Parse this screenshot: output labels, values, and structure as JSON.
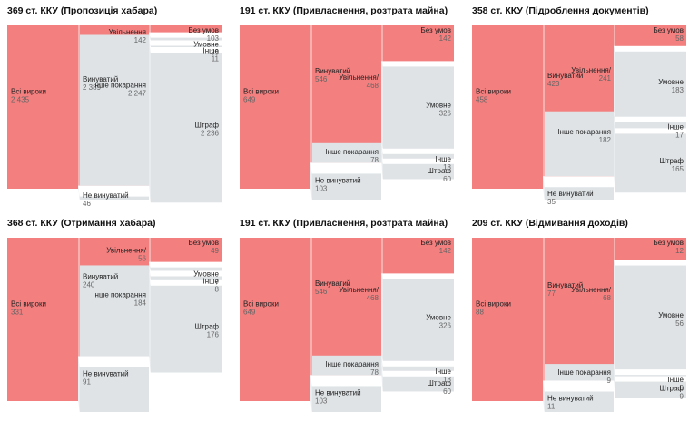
{
  "colors": {
    "red": "#f37f7f",
    "red_link": "#f7b0b0",
    "grey": "#dfe3e6",
    "grey_link": "#e9ecee",
    "label": "#222222",
    "value": "#666666"
  },
  "chart_data": [
    {
      "type": "sankey",
      "title": "369 ст. ККУ (Пропозиція хабара)",
      "nodes": [
        {
          "id": "all",
          "label": "Всі вироки",
          "value": "2 435"
        },
        {
          "id": "guilty",
          "label": "Винуватий",
          "value": "2 389"
        },
        {
          "id": "notguilty",
          "label": "Не винуватий",
          "value": "46"
        },
        {
          "id": "released",
          "label": "Увільнення",
          "value": "142"
        },
        {
          "id": "other",
          "label": "Інше покарання",
          "value": "2 247"
        },
        {
          "id": "real",
          "label": "Без умов",
          "value": "103"
        },
        {
          "id": "cond",
          "label": "Умовне",
          "value": "39"
        },
        {
          "id": "oth",
          "label": "Інше",
          "value": "11"
        },
        {
          "id": "fine",
          "label": "Штраф",
          "value": "2 236"
        }
      ],
      "links": [
        [
          "all",
          "guilty"
        ],
        [
          "all",
          "notguilty"
        ],
        [
          "guilty",
          "released"
        ],
        [
          "guilty",
          "other"
        ],
        [
          "released",
          "real"
        ],
        [
          "released",
          "cond"
        ],
        [
          "other",
          "oth"
        ],
        [
          "other",
          "fine"
        ]
      ]
    },
    {
      "type": "sankey",
      "title": "191 ст. ККУ (Привласнення, розтрата майна)",
      "nodes": [
        {
          "id": "all",
          "label": "Всі вироки",
          "value": "649"
        },
        {
          "id": "guilty",
          "label": "Винуватий",
          "value": "546"
        },
        {
          "id": "notguilty",
          "label": "Не винуватий",
          "value": "103"
        },
        {
          "id": "released",
          "label": "Увільнення/",
          "value": "468"
        },
        {
          "id": "other",
          "label": "Інше покарання",
          "value": "78"
        },
        {
          "id": "real",
          "label": "Без умов",
          "value": "142"
        },
        {
          "id": "cond",
          "label": "Умовне",
          "value": "326"
        },
        {
          "id": "oth",
          "label": "Інше",
          "value": "18"
        },
        {
          "id": "fine",
          "label": "Штраф",
          "value": "60"
        }
      ],
      "links": [
        [
          "all",
          "guilty"
        ],
        [
          "all",
          "notguilty"
        ],
        [
          "guilty",
          "released"
        ],
        [
          "guilty",
          "other"
        ],
        [
          "released",
          "real"
        ],
        [
          "released",
          "cond"
        ],
        [
          "other",
          "oth"
        ],
        [
          "other",
          "fine"
        ]
      ]
    },
    {
      "type": "sankey",
      "title": "358 ст. ККУ (Підроблення документів)",
      "nodes": [
        {
          "id": "all",
          "label": "Всі вироки",
          "value": "458"
        },
        {
          "id": "guilty",
          "label": "Винуватий",
          "value": "423"
        },
        {
          "id": "notguilty",
          "label": "Не винуватий",
          "value": "35"
        },
        {
          "id": "released",
          "label": "Увільнення/",
          "value": "241"
        },
        {
          "id": "other",
          "label": "Інше покарання",
          "value": "182"
        },
        {
          "id": "real",
          "label": "Без умов",
          "value": "58"
        },
        {
          "id": "cond",
          "label": "Умовне",
          "value": "183"
        },
        {
          "id": "oth",
          "label": "Інше",
          "value": "17"
        },
        {
          "id": "fine",
          "label": "Штраф",
          "value": "165"
        }
      ],
      "links": [
        [
          "all",
          "guilty"
        ],
        [
          "all",
          "notguilty"
        ],
        [
          "guilty",
          "released"
        ],
        [
          "guilty",
          "other"
        ],
        [
          "released",
          "real"
        ],
        [
          "released",
          "cond"
        ],
        [
          "other",
          "oth"
        ],
        [
          "other",
          "fine"
        ]
      ]
    },
    {
      "type": "sankey",
      "title": "368 ст. ККУ (Отримання хабара)",
      "nodes": [
        {
          "id": "all",
          "label": "Всі вироки",
          "value": "331"
        },
        {
          "id": "guilty",
          "label": "Винуватий",
          "value": "240"
        },
        {
          "id": "notguilty",
          "label": "Не винуватий",
          "value": "91"
        },
        {
          "id": "released",
          "label": "Увільнення/",
          "value": "56"
        },
        {
          "id": "other",
          "label": "Інше покарання",
          "value": "184"
        },
        {
          "id": "real",
          "label": "Без умов",
          "value": "49"
        },
        {
          "id": "cond",
          "label": "Умовне",
          "value": "7"
        },
        {
          "id": "oth",
          "label": "Інше",
          "value": "8"
        },
        {
          "id": "fine",
          "label": "Штраф",
          "value": "176"
        }
      ],
      "links": [
        [
          "all",
          "guilty"
        ],
        [
          "all",
          "notguilty"
        ],
        [
          "guilty",
          "released"
        ],
        [
          "guilty",
          "other"
        ],
        [
          "released",
          "real"
        ],
        [
          "released",
          "cond"
        ],
        [
          "other",
          "oth"
        ],
        [
          "other",
          "fine"
        ]
      ]
    },
    {
      "type": "sankey",
      "title": "191 ст. ККУ (Привласнення, розтрата майна)",
      "nodes": [
        {
          "id": "all",
          "label": "Всі вироки",
          "value": "649"
        },
        {
          "id": "guilty",
          "label": "Винуватий",
          "value": "546"
        },
        {
          "id": "notguilty",
          "label": "Не винуватий",
          "value": "103"
        },
        {
          "id": "released",
          "label": "Увільнення/",
          "value": "468"
        },
        {
          "id": "other",
          "label": "Інше покарання",
          "value": "78"
        },
        {
          "id": "real",
          "label": "Без умов",
          "value": "142"
        },
        {
          "id": "cond",
          "label": "Умовне",
          "value": "326"
        },
        {
          "id": "oth",
          "label": "Інше",
          "value": "18"
        },
        {
          "id": "fine",
          "label": "Штраф",
          "value": "60"
        }
      ],
      "links": [
        [
          "all",
          "guilty"
        ],
        [
          "all",
          "notguilty"
        ],
        [
          "guilty",
          "released"
        ],
        [
          "guilty",
          "other"
        ],
        [
          "released",
          "real"
        ],
        [
          "released",
          "cond"
        ],
        [
          "other",
          "oth"
        ],
        [
          "other",
          "fine"
        ]
      ]
    },
    {
      "type": "sankey",
      "title": "209 ст. ККУ (Відмивання доходів)",
      "nodes": [
        {
          "id": "all",
          "label": "Всі вироки",
          "value": "88"
        },
        {
          "id": "guilty",
          "label": "Винуватий",
          "value": "77"
        },
        {
          "id": "notguilty",
          "label": "Не винуватий",
          "value": "11"
        },
        {
          "id": "released",
          "label": "Увільнення/",
          "value": "68"
        },
        {
          "id": "other",
          "label": "Інше покарання",
          "value": "9"
        },
        {
          "id": "real",
          "label": "Без умов",
          "value": "12"
        },
        {
          "id": "cond",
          "label": "Умовне",
          "value": "56"
        },
        {
          "id": "oth",
          "label": "Інше",
          "value": "0"
        },
        {
          "id": "fine",
          "label": "Штраф",
          "value": "9"
        }
      ],
      "links": [
        [
          "all",
          "guilty"
        ],
        [
          "all",
          "notguilty"
        ],
        [
          "guilty",
          "released"
        ],
        [
          "guilty",
          "other"
        ],
        [
          "released",
          "real"
        ],
        [
          "released",
          "cond"
        ],
        [
          "other",
          "oth"
        ],
        [
          "other",
          "fine"
        ]
      ]
    }
  ]
}
